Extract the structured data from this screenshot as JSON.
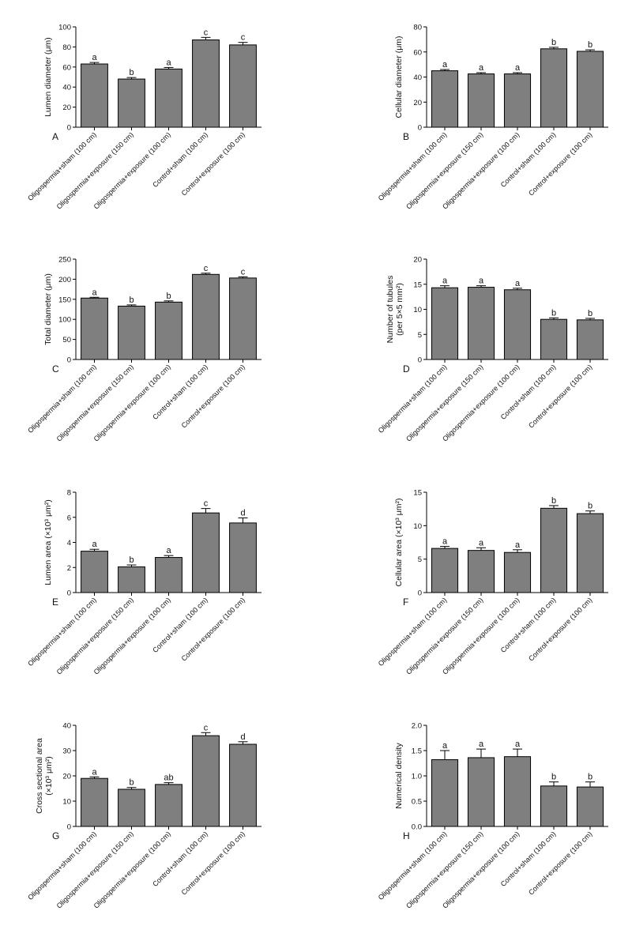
{
  "colors": {
    "bar_fill": "#7f7f7f",
    "bar_stroke": "#000000",
    "axis": "#000000"
  },
  "categories": [
    "Oligospermia+sham (100 cm)",
    "Oligospermia+exposure (150 cm)",
    "Oligospermia+exposure (100 cm)",
    "Control+sham (100 cm)",
    "Control+exposure (100 cm)"
  ],
  "chart_data": [
    {
      "type": "bar",
      "panel": "A",
      "ylabel": "Lumen diameter (μm)",
      "ylim": [
        0,
        100
      ],
      "yticks": [
        0,
        20,
        40,
        60,
        80,
        100
      ],
      "values": [
        63,
        48,
        58,
        87,
        82
      ],
      "errors": [
        1.5,
        1.5,
        1.5,
        2.5,
        2.5
      ],
      "sig": [
        "a",
        "b",
        "a",
        "c",
        "c"
      ]
    },
    {
      "type": "bar",
      "panel": "B",
      "ylabel": "Cellular diameter (μm)",
      "ylim": [
        0,
        80
      ],
      "yticks": [
        0,
        20,
        40,
        60,
        80
      ],
      "values": [
        45,
        42.5,
        42.5,
        62.5,
        60.5
      ],
      "errors": [
        1,
        1,
        1,
        1.2,
        1.2
      ],
      "sig": [
        "a",
        "a",
        "a",
        "b",
        "b"
      ]
    },
    {
      "type": "bar",
      "panel": "C",
      "ylabel": "Total diameter (μm)",
      "ylim": [
        0,
        250
      ],
      "yticks": [
        0,
        50,
        100,
        150,
        200,
        250
      ],
      "values": [
        153,
        133,
        143,
        212,
        203
      ],
      "errors": [
        2,
        3,
        3,
        3,
        3
      ],
      "sig": [
        "a",
        "b",
        "b",
        "c",
        "c"
      ]
    },
    {
      "type": "bar",
      "panel": "D",
      "ylabel": "Number of tubules",
      "ylabel2": "(per 5×5 mm²)",
      "ylim": [
        0,
        20
      ],
      "yticks": [
        0,
        5,
        10,
        15,
        20
      ],
      "values": [
        14.3,
        14.4,
        13.9,
        8.0,
        7.9
      ],
      "errors": [
        0.4,
        0.3,
        0.3,
        0.3,
        0.3
      ],
      "sig": [
        "a",
        "a",
        "a",
        "b",
        "b"
      ]
    },
    {
      "type": "bar",
      "panel": "E",
      "ylabel": "Lumen area (×10³ μm²)",
      "ylim": [
        0,
        8
      ],
      "yticks": [
        0,
        2,
        4,
        6,
        8
      ],
      "values": [
        3.3,
        2.05,
        2.8,
        6.35,
        5.55
      ],
      "errors": [
        0.15,
        0.15,
        0.15,
        0.35,
        0.4
      ],
      "sig": [
        "a",
        "b",
        "a",
        "c",
        "d"
      ]
    },
    {
      "type": "bar",
      "panel": "F",
      "ylabel": "Cellular area (×10³ μm²)",
      "ylim": [
        0,
        15
      ],
      "yticks": [
        0,
        5,
        10,
        15
      ],
      "values": [
        6.6,
        6.3,
        6.0,
        12.6,
        11.8
      ],
      "errors": [
        0.3,
        0.4,
        0.4,
        0.4,
        0.4
      ],
      "sig": [
        "a",
        "a",
        "a",
        "b",
        "b"
      ]
    },
    {
      "type": "bar",
      "panel": "G",
      "ylabel": "Cross sectional area",
      "ylabel2": "(×10³ μm²)",
      "ylim": [
        0,
        40
      ],
      "yticks": [
        0,
        10,
        20,
        30,
        40
      ],
      "values": [
        19,
        14.7,
        16.6,
        35.9,
        32.5
      ],
      "errors": [
        0.6,
        0.7,
        0.7,
        1.2,
        1.0
      ],
      "sig": [
        "a",
        "b",
        "ab",
        "c",
        "d"
      ]
    },
    {
      "type": "bar",
      "panel": "H",
      "ylabel": "Numerical density",
      "ylim": [
        0,
        2
      ],
      "yticks": [
        0,
        0.5,
        1,
        1.5,
        2
      ],
      "ytick_labels": [
        "0.0",
        "0.5",
        "1.0",
        "1.5",
        "2.0"
      ],
      "values": [
        1.32,
        1.36,
        1.38,
        0.8,
        0.78
      ],
      "errors": [
        0.18,
        0.17,
        0.15,
        0.08,
        0.1
      ],
      "sig": [
        "a",
        "a",
        "a",
        "b",
        "b"
      ]
    }
  ]
}
